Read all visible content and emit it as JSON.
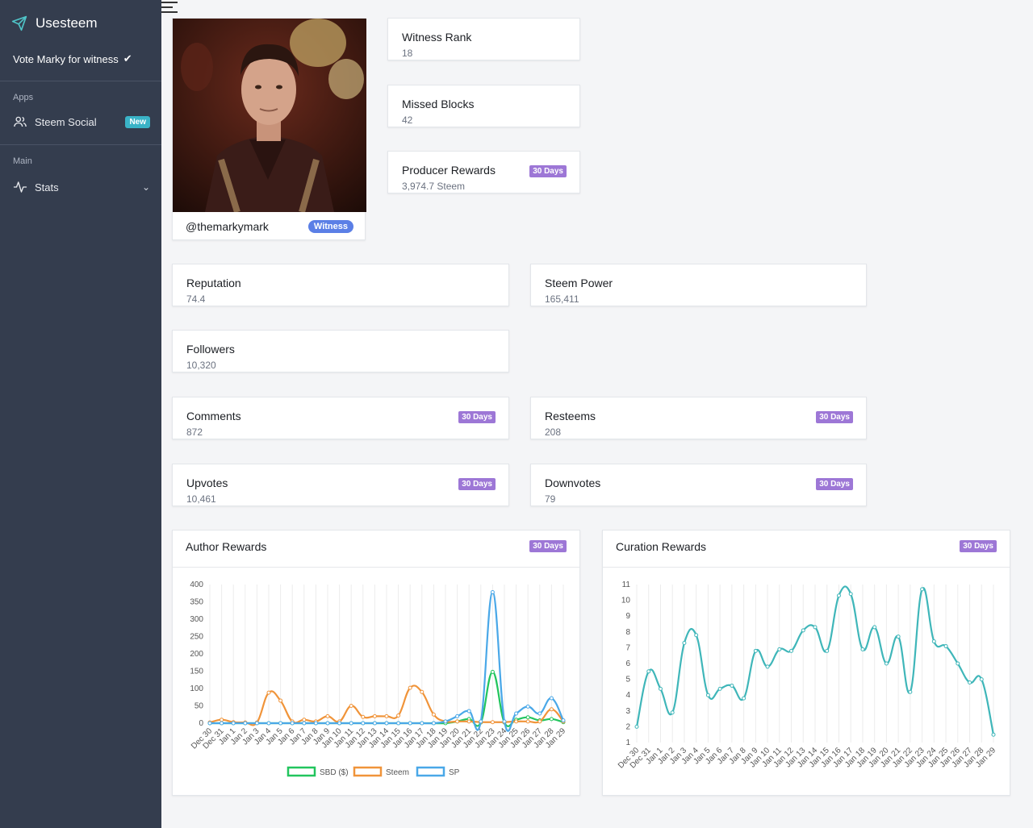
{
  "sidebar": {
    "brand": "Usesteem",
    "vote_label": "Vote Marky for witness",
    "section_apps": "Apps",
    "section_main": "Main",
    "steem_social": "Steem Social",
    "new_badge": "New",
    "stats": "Stats"
  },
  "profile": {
    "handle": "@themarkymark",
    "badge": "Witness"
  },
  "stats": {
    "witness_rank": {
      "title": "Witness Rank",
      "value": "18"
    },
    "missed_blocks": {
      "title": "Missed Blocks",
      "value": "42"
    },
    "producer_rewards": {
      "title": "Producer Rewards",
      "value": "3,974.7 Steem",
      "badge": "30 Days"
    },
    "reputation": {
      "title": "Reputation",
      "value": "74.4"
    },
    "steem_power": {
      "title": "Steem Power",
      "value": "165,411"
    },
    "followers": {
      "title": "Followers",
      "value": "10,320"
    },
    "comments": {
      "title": "Comments",
      "value": "872",
      "badge": "30 Days"
    },
    "resteems": {
      "title": "Resteems",
      "value": "208",
      "badge": "30 Days"
    },
    "upvotes": {
      "title": "Upvotes",
      "value": "10,461",
      "badge": "30 Days"
    },
    "downvotes": {
      "title": "Downvotes",
      "value": "79",
      "badge": "30 Days"
    }
  },
  "colors": {
    "sidebar": "#343d4e",
    "badge": "#9d77d6",
    "sbd": "#22c55e",
    "steem": "#f0943a",
    "sp": "#4aa8e8",
    "curation": "#3fb6b9"
  },
  "chart_data": [
    {
      "type": "line",
      "title": "Author Rewards",
      "badge": "30 Days",
      "x": [
        "Dec 30",
        "Dec 31",
        "Jan 1",
        "Jan 2",
        "Jan 3",
        "Jan 4",
        "Jan 5",
        "Jan 6",
        "Jan 7",
        "Jan 8",
        "Jan 9",
        "Jan 10",
        "Jan 11",
        "Jan 12",
        "Jan 13",
        "Jan 14",
        "Jan 15",
        "Jan 16",
        "Jan 17",
        "Jan 18",
        "Jan 19",
        "Jan 20",
        "Jan 21",
        "Jan 22",
        "Jan 23",
        "Jan 24",
        "Jan 25",
        "Jan 26",
        "Jan 27",
        "Jan 28",
        "Jan 29"
      ],
      "ylim": [
        0,
        400
      ],
      "yticks": [
        0,
        50,
        100,
        150,
        200,
        250,
        300,
        350,
        400
      ],
      "legend": "bottom",
      "series": [
        {
          "name": "SBD ($)",
          "values": [
            0,
            0,
            0,
            0,
            0,
            0,
            0,
            0,
            0,
            0,
            0,
            0,
            0,
            0,
            0,
            0,
            0,
            0,
            0,
            0,
            0,
            5,
            12,
            2,
            148,
            2,
            10,
            17,
            8,
            12,
            3
          ]
        },
        {
          "name": "Steem",
          "values": [
            2,
            10,
            3,
            2,
            2,
            88,
            65,
            5,
            10,
            5,
            20,
            5,
            50,
            18,
            20,
            20,
            22,
            102,
            90,
            25,
            5,
            5,
            5,
            3,
            3,
            3,
            5,
            5,
            5,
            40,
            5
          ]
        },
        {
          "name": "SP",
          "values": [
            0,
            0,
            0,
            0,
            0,
            0,
            0,
            0,
            0,
            0,
            0,
            0,
            0,
            0,
            0,
            0,
            0,
            0,
            0,
            0,
            5,
            20,
            35,
            5,
            378,
            5,
            28,
            48,
            28,
            72,
            8
          ]
        }
      ]
    },
    {
      "type": "line",
      "title": "Curation Rewards",
      "badge": "30 Days",
      "x": [
        "Dec 30",
        "Dec 31",
        "Jan 1",
        "Jan 2",
        "Jan 3",
        "Jan 4",
        "Jan 5",
        "Jan 6",
        "Jan 7",
        "Jan 8",
        "Jan 9",
        "Jan 10",
        "Jan 11",
        "Jan 12",
        "Jan 13",
        "Jan 14",
        "Jan 15",
        "Jan 16",
        "Jan 17",
        "Jan 18",
        "Jan 19",
        "Jan 20",
        "Jan 21",
        "Jan 22",
        "Jan 23",
        "Jan 24",
        "Jan 25",
        "Jan 26",
        "Jan 27",
        "Jan 28",
        "Jan 29"
      ],
      "ylim": [
        1,
        11
      ],
      "yticks": [
        1,
        2,
        3,
        4,
        5,
        6,
        7,
        8,
        9,
        10,
        11
      ],
      "series": [
        {
          "values": [
            2.0,
            5.5,
            4.4,
            2.9,
            7.3,
            7.8,
            4.0,
            4.4,
            4.6,
            3.8,
            6.8,
            5.8,
            6.9,
            6.8,
            8.1,
            8.3,
            6.8,
            10.3,
            10.4,
            6.9,
            8.3,
            6.0,
            7.7,
            4.2,
            10.7,
            7.4,
            7.1,
            6.0,
            4.8,
            5.0,
            1.5
          ]
        }
      ]
    }
  ]
}
